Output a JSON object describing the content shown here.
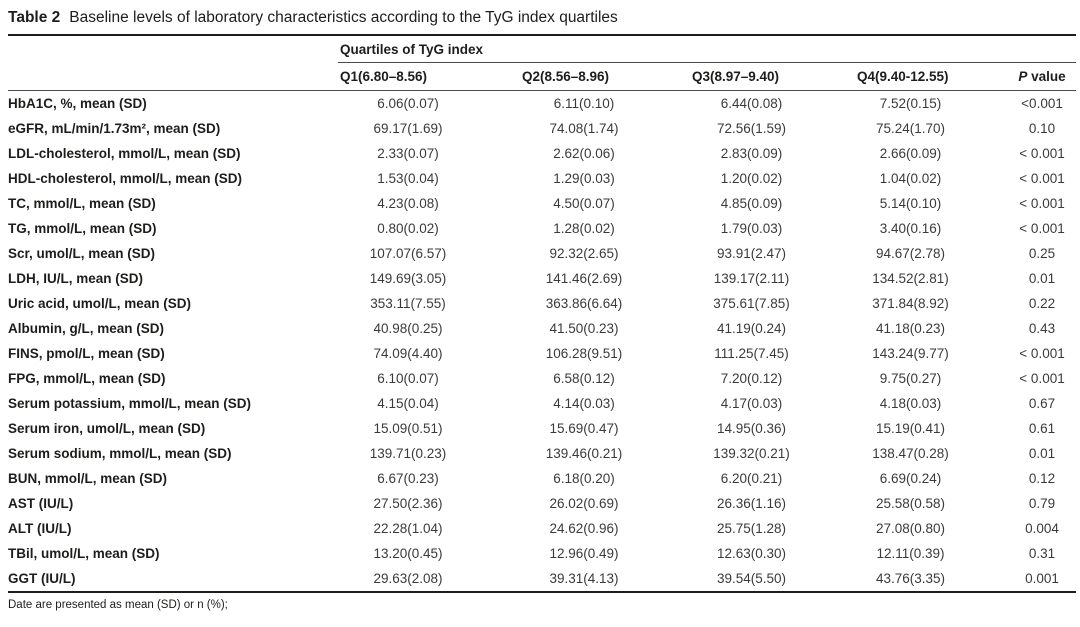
{
  "caption": {
    "label": "Table 2",
    "text": "Baseline levels of laboratory characteristics according to the TyG index quartiles"
  },
  "table": {
    "spanner": "Quartiles of TyG index",
    "columns": [
      "Q1(6.80–8.56)",
      "Q2(8.56–8.96)",
      "Q3(8.97–9.40)",
      "Q4(9.40-12.55)",
      "P value"
    ],
    "rows": [
      {
        "label": "HbA1C, %, mean (SD)",
        "q1": "6.06(0.07)",
        "q2": "6.11(0.10)",
        "q3": "6.44(0.08)",
        "q4": "7.52(0.15)",
        "p": "<0.001"
      },
      {
        "label": "eGFR, mL/min/1.73m², mean (SD)",
        "q1": "69.17(1.69)",
        "q2": "74.08(1.74)",
        "q3": "72.56(1.59)",
        "q4": "75.24(1.70)",
        "p": "0.10"
      },
      {
        "label": "LDL-cholesterol, mmol/L, mean (SD)",
        "q1": "2.33(0.07)",
        "q2": "2.62(0.06)",
        "q3": "2.83(0.09)",
        "q4": "2.66(0.09)",
        "p": "< 0.001"
      },
      {
        "label": "HDL-cholesterol, mmol/L, mean (SD)",
        "q1": "1.53(0.04)",
        "q2": "1.29(0.03)",
        "q3": "1.20(0.02)",
        "q4": "1.04(0.02)",
        "p": "< 0.001"
      },
      {
        "label": "TC, mmol/L, mean (SD)",
        "q1": "4.23(0.08)",
        "q2": "4.50(0.07)",
        "q3": "4.85(0.09)",
        "q4": "5.14(0.10)",
        "p": "< 0.001"
      },
      {
        "label": "TG, mmol/L, mean (SD)",
        "q1": "0.80(0.02)",
        "q2": "1.28(0.02)",
        "q3": "1.79(0.03)",
        "q4": "3.40(0.16)",
        "p": "< 0.001"
      },
      {
        "label": "Scr, umol/L, mean (SD)",
        "q1": "107.07(6.57)",
        "q2": "92.32(2.65)",
        "q3": "93.91(2.47)",
        "q4": "94.67(2.78)",
        "p": "0.25"
      },
      {
        "label": "LDH, IU/L, mean (SD)",
        "q1": "149.69(3.05)",
        "q2": "141.46(2.69)",
        "q3": "139.17(2.11)",
        "q4": "134.52(2.81)",
        "p": "0.01"
      },
      {
        "label": "Uric acid, umol/L, mean (SD)",
        "q1": "353.11(7.55)",
        "q2": "363.86(6.64)",
        "q3": "375.61(7.85)",
        "q4": "371.84(8.92)",
        "p": "0.22"
      },
      {
        "label": "Albumin, g/L, mean (SD)",
        "q1": "40.98(0.25)",
        "q2": "41.50(0.23)",
        "q3": "41.19(0.24)",
        "q4": "41.18(0.23)",
        "p": "0.43"
      },
      {
        "label": "FINS, pmol/L, mean (SD)",
        "q1": "74.09(4.40)",
        "q2": "106.28(9.51)",
        "q3": "111.25(7.45)",
        "q4": "143.24(9.77)",
        "p": "< 0.001"
      },
      {
        "label": "FPG, mmol/L, mean (SD)",
        "q1": "6.10(0.07)",
        "q2": "6.58(0.12)",
        "q3": "7.20(0.12)",
        "q4": "9.75(0.27)",
        "p": "< 0.001"
      },
      {
        "label": "Serum potassium, mmol/L, mean (SD)",
        "q1": "4.15(0.04)",
        "q2": "4.14(0.03)",
        "q3": "4.17(0.03)",
        "q4": "4.18(0.03)",
        "p": "0.67"
      },
      {
        "label": "Serum iron, umol/L, mean (SD)",
        "q1": "15.09(0.51)",
        "q2": "15.69(0.47)",
        "q3": "14.95(0.36)",
        "q4": "15.19(0.41)",
        "p": "0.61"
      },
      {
        "label": "Serum sodium, mmol/L, mean (SD)",
        "q1": "139.71(0.23)",
        "q2": "139.46(0.21)",
        "q3": "139.32(0.21)",
        "q4": "138.47(0.28)",
        "p": "0.01"
      },
      {
        "label": "BUN, mmol/L, mean (SD)",
        "q1": "6.67(0.23)",
        "q2": "6.18(0.20)",
        "q3": "6.20(0.21)",
        "q4": "6.69(0.24)",
        "p": "0.12"
      },
      {
        "label": "AST (IU/L)",
        "q1": "27.50(2.36)",
        "q2": "26.02(0.69)",
        "q3": "26.36(1.16)",
        "q4": "25.58(0.58)",
        "p": "0.79"
      },
      {
        "label": "ALT (IU/L)",
        "q1": "22.28(1.04)",
        "q2": "24.62(0.96)",
        "q3": "25.75(1.28)",
        "q4": "27.08(0.80)",
        "p": "0.004"
      },
      {
        "label": "TBil, umol/L, mean (SD)",
        "q1": "13.20(0.45)",
        "q2": "12.96(0.49)",
        "q3": "12.63(0.30)",
        "q4": "12.11(0.39)",
        "p": "0.31"
      },
      {
        "label": "GGT (IU/L)",
        "q1": "29.63(2.08)",
        "q2": "39.31(4.13)",
        "q3": "39.54(5.50)",
        "q4": "43.76(3.35)",
        "p": "0.001"
      }
    ]
  },
  "footnote": "Date are presented as mean (SD) or n (%);"
}
